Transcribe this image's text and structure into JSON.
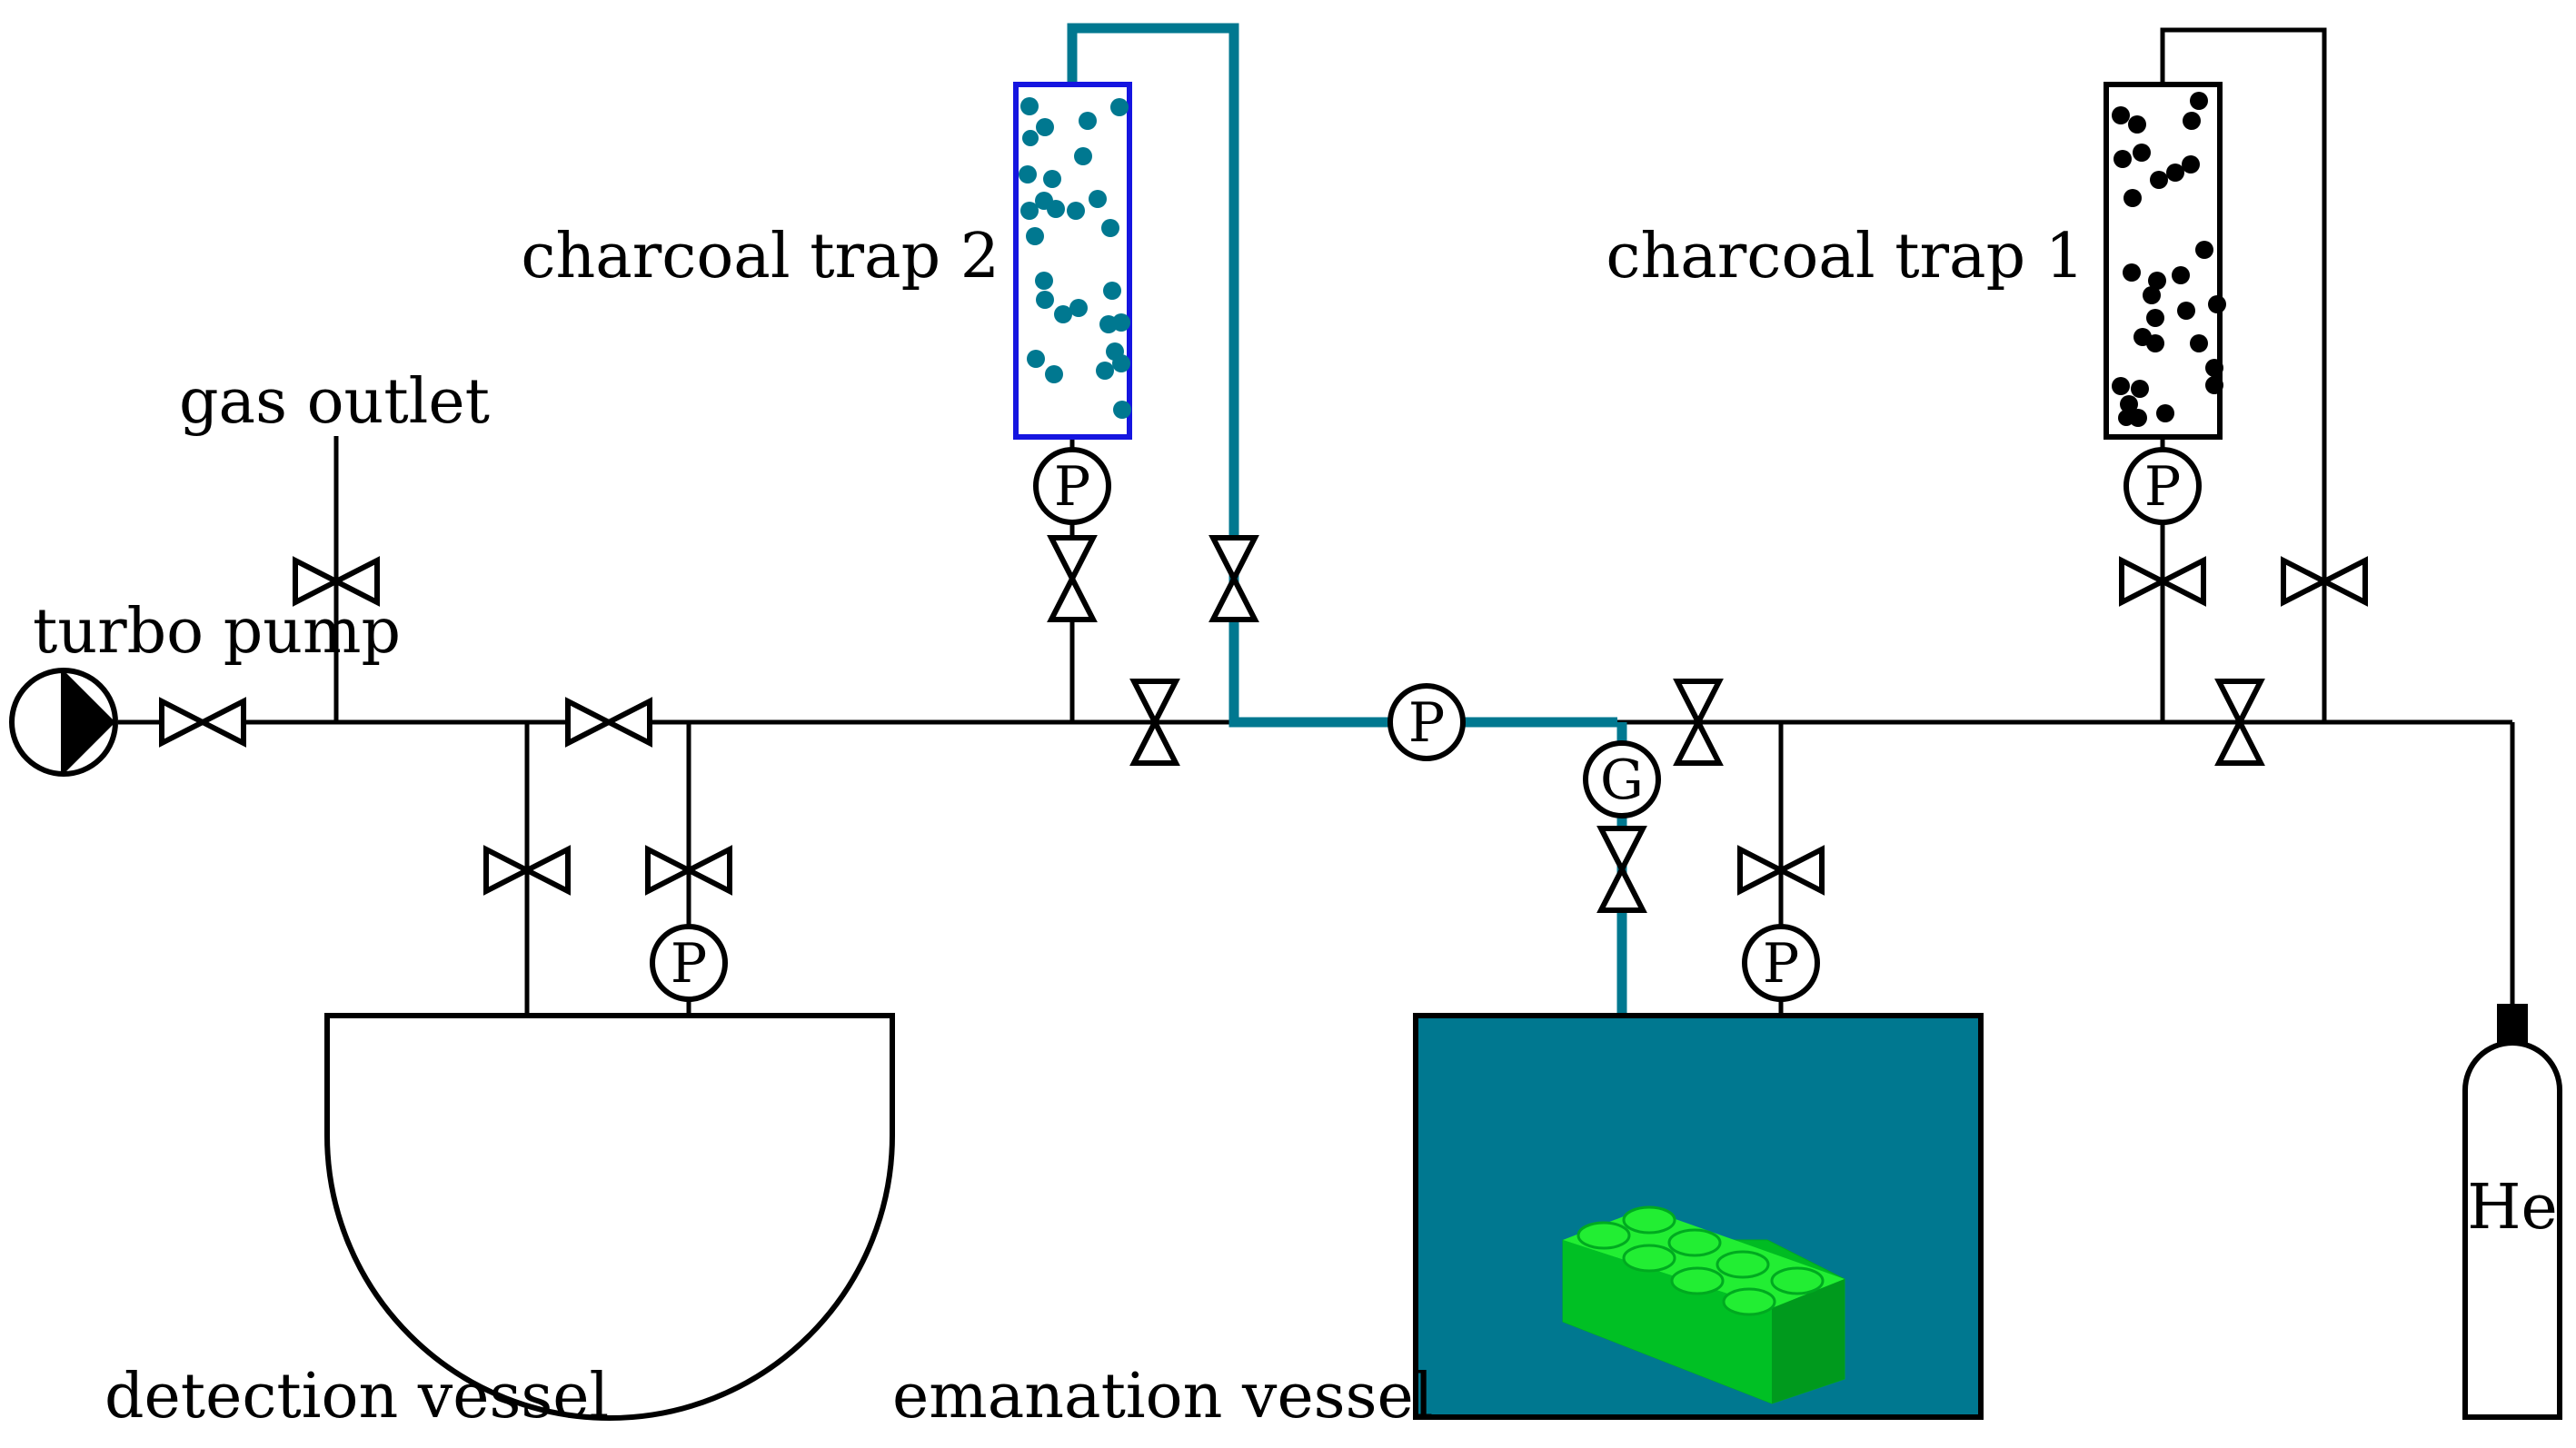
{
  "labels": {
    "charcoal_trap_2": "charcoal trap 2",
    "charcoal_trap_1": "charcoal trap 1",
    "gas_outlet": "gas outlet",
    "turbo_pump": "turbo pump",
    "detection_vessel": "detection vessel",
    "emanation_vessel": "emanation vessel",
    "helium": "He"
  },
  "gauges": {
    "pressure": "P",
    "gauge": "G"
  },
  "colors": {
    "teal": "#007890",
    "trap2_border": "#1515e0",
    "lego_light": "#22ee33",
    "lego_dark": "#00bb22",
    "black": "#000000"
  }
}
